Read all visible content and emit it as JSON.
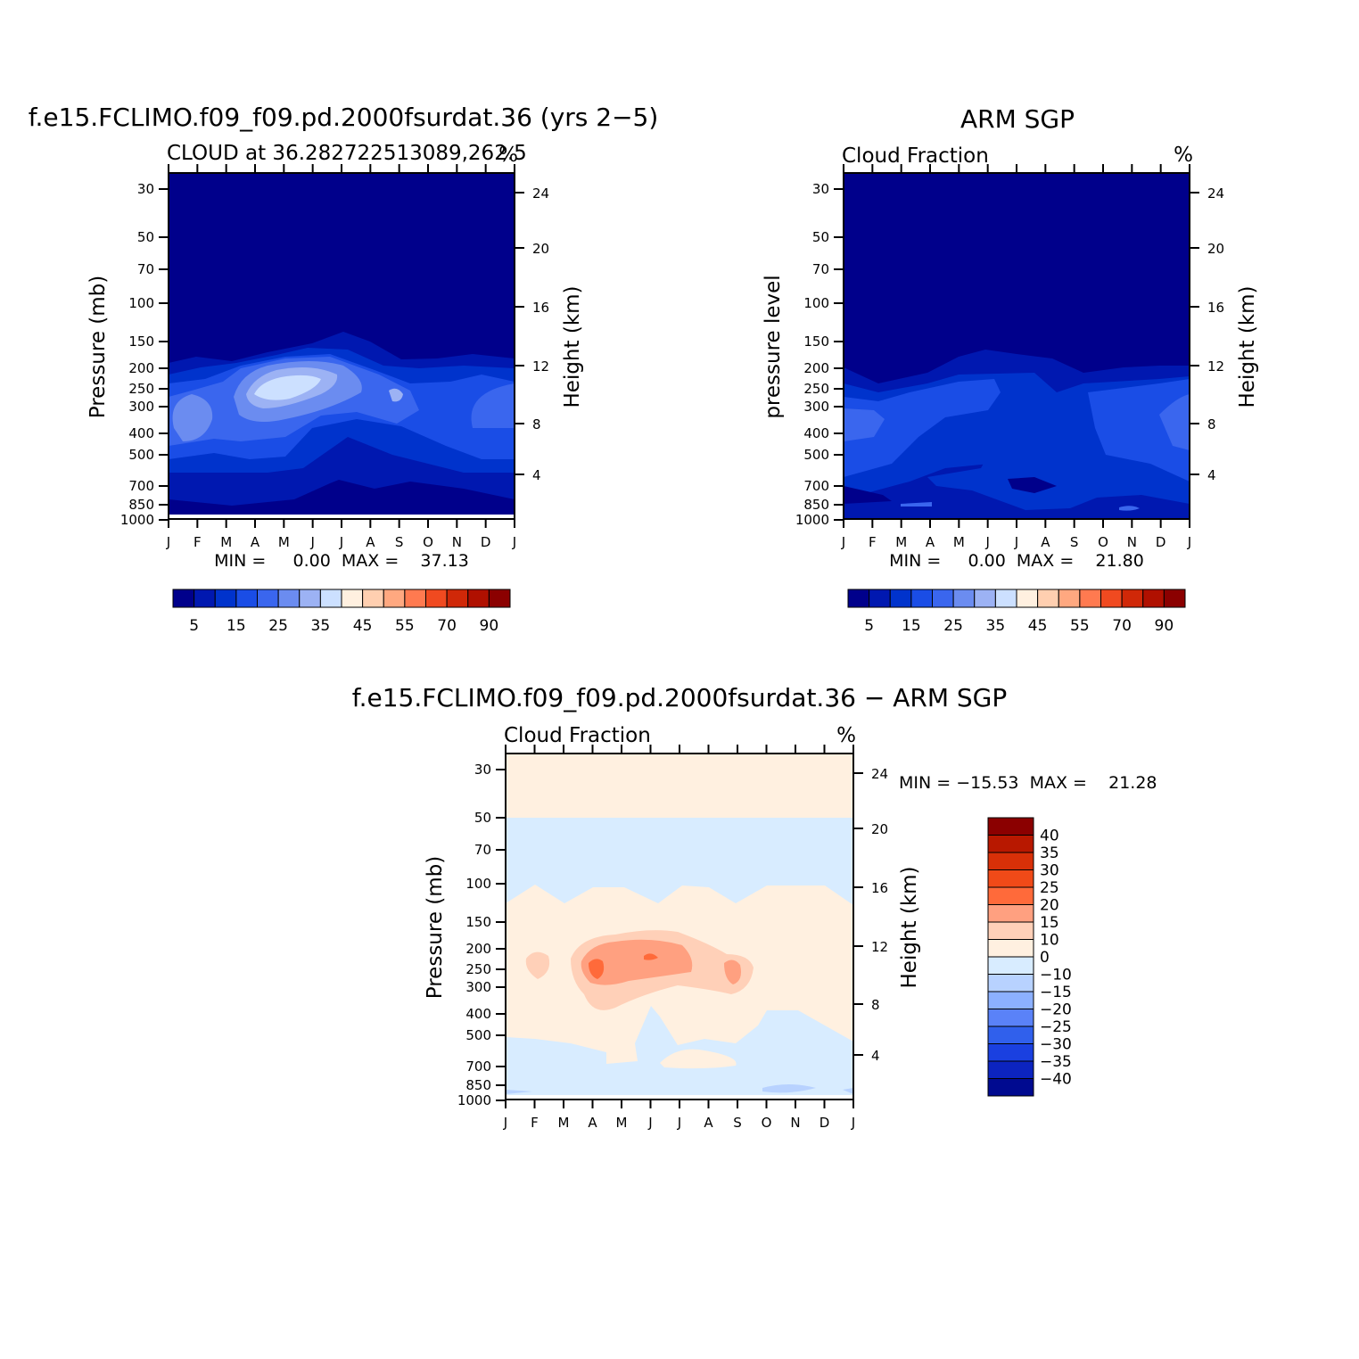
{
  "colors": {
    "model_obs_scale": [
      "#00008b",
      "#0018b0",
      "#0033cc",
      "#1a4de6",
      "#3a66ee",
      "#6b8cf0",
      "#9cb2f4",
      "#cce0ff",
      "#fff0e0",
      "#ffcfb0",
      "#ffa880",
      "#ff7a50",
      "#f04a20",
      "#d02808",
      "#b01000",
      "#8b0000"
    ],
    "diff_scale_top_to_bottom": [
      "#8b0000",
      "#b81800",
      "#d83008",
      "#f04a18",
      "#ff6a3a",
      "#ffa080",
      "#ffd0b8",
      "#fff0e0",
      "#d8ecff",
      "#b8d2ff",
      "#8cb0ff",
      "#5a82f8",
      "#3060ec",
      "#1a40e0",
      "#0c24c0",
      "#000a90"
    ]
  },
  "chart_data": [
    {
      "id": "model",
      "type": "contour",
      "title": "f.e15.FCLIMO.f09_f09.pd.2000fsurdat.36 (yrs 2−5)",
      "subtitle_left": "CLOUD at 36.282722513089,262.5",
      "units": "%",
      "ylabel": "Pressure (mb)",
      "y2label": "Height (km)",
      "pressure_ticks": [
        "30",
        "50",
        "70",
        "100",
        "150",
        "200",
        "250",
        "300",
        "400",
        "500",
        "700",
        "850",
        "1000"
      ],
      "height_ticks": [
        "24",
        "20",
        "16",
        "12",
        "8",
        "4"
      ],
      "months": [
        "J",
        "F",
        "M",
        "A",
        "M",
        "J",
        "J",
        "A",
        "S",
        "O",
        "N",
        "D",
        "J"
      ],
      "stats": "MIN =     0.00  MAX =    37.13",
      "min": 0.0,
      "max": 37.13,
      "colorbar_labels": [
        "5",
        "15",
        "25",
        "35",
        "45",
        "55",
        "70",
        "90"
      ],
      "colorbar_levels": [
        5,
        10,
        15,
        20,
        25,
        30,
        35,
        40,
        45,
        50,
        55,
        60,
        70,
        80,
        90
      ]
    },
    {
      "id": "obs",
      "type": "contour",
      "title": "ARM SGP",
      "subtitle_left": "Cloud Fraction",
      "units": "%",
      "ylabel": "pressure level",
      "y2label": "Height (km)",
      "pressure_ticks": [
        "30",
        "50",
        "70",
        "100",
        "150",
        "200",
        "250",
        "300",
        "400",
        "500",
        "700",
        "850",
        "1000"
      ],
      "height_ticks": [
        "24",
        "20",
        "16",
        "12",
        "8",
        "4"
      ],
      "months": [
        "J",
        "F",
        "M",
        "A",
        "M",
        "J",
        "J",
        "A",
        "S",
        "O",
        "N",
        "D",
        "J"
      ],
      "stats": "MIN =     0.00  MAX =    21.80",
      "min": 0.0,
      "max": 21.8,
      "colorbar_labels": [
        "5",
        "15",
        "25",
        "35",
        "45",
        "55",
        "70",
        "90"
      ],
      "colorbar_levels": [
        5,
        10,
        15,
        20,
        25,
        30,
        35,
        40,
        45,
        50,
        55,
        60,
        70,
        80,
        90
      ]
    },
    {
      "id": "diff",
      "type": "contour",
      "title": "f.e15.FCLIMO.f09_f09.pd.2000fsurdat.36 − ARM SGP",
      "subtitle_left": "Cloud Fraction",
      "units": "%",
      "ylabel": "Pressure (mb)",
      "y2label": "Height (km)",
      "pressure_ticks": [
        "30",
        "50",
        "70",
        "100",
        "150",
        "200",
        "250",
        "300",
        "400",
        "500",
        "700",
        "850",
        "1000"
      ],
      "height_ticks": [
        "24",
        "20",
        "16",
        "12",
        "8",
        "4"
      ],
      "months": [
        "J",
        "F",
        "M",
        "A",
        "M",
        "J",
        "J",
        "A",
        "S",
        "O",
        "N",
        "D",
        "J"
      ],
      "stats": "MIN = −15.53  MAX =    21.28",
      "min": -15.53,
      "max": 21.28,
      "colorbar_labels": [
        "40",
        "35",
        "30",
        "25",
        "20",
        "15",
        "10",
        "0",
        "−10",
        "−15",
        "−20",
        "−25",
        "−30",
        "−35",
        "−40"
      ]
    }
  ]
}
